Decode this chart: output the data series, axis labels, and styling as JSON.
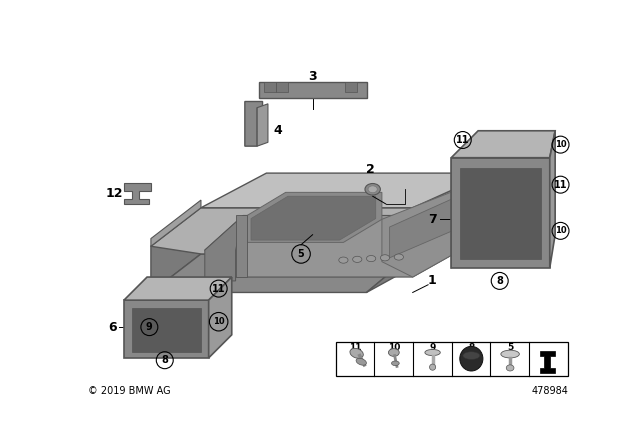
{
  "bg_color": "#ffffff",
  "copyright": "© 2019 BMW AG",
  "part_id": "478984",
  "tray_outer_color": "#909090",
  "tray_top_color": "#b8b8b8",
  "tray_inner_color": "#7a7a7a",
  "tray_floor_color": "#959595",
  "box_front_color": "#888888",
  "box_top_color": "#b0b0b0",
  "box_side_color": "#9a9a9a",
  "box_inner_color": "#636363",
  "edge_color": "#555555",
  "label_color": "#000000"
}
